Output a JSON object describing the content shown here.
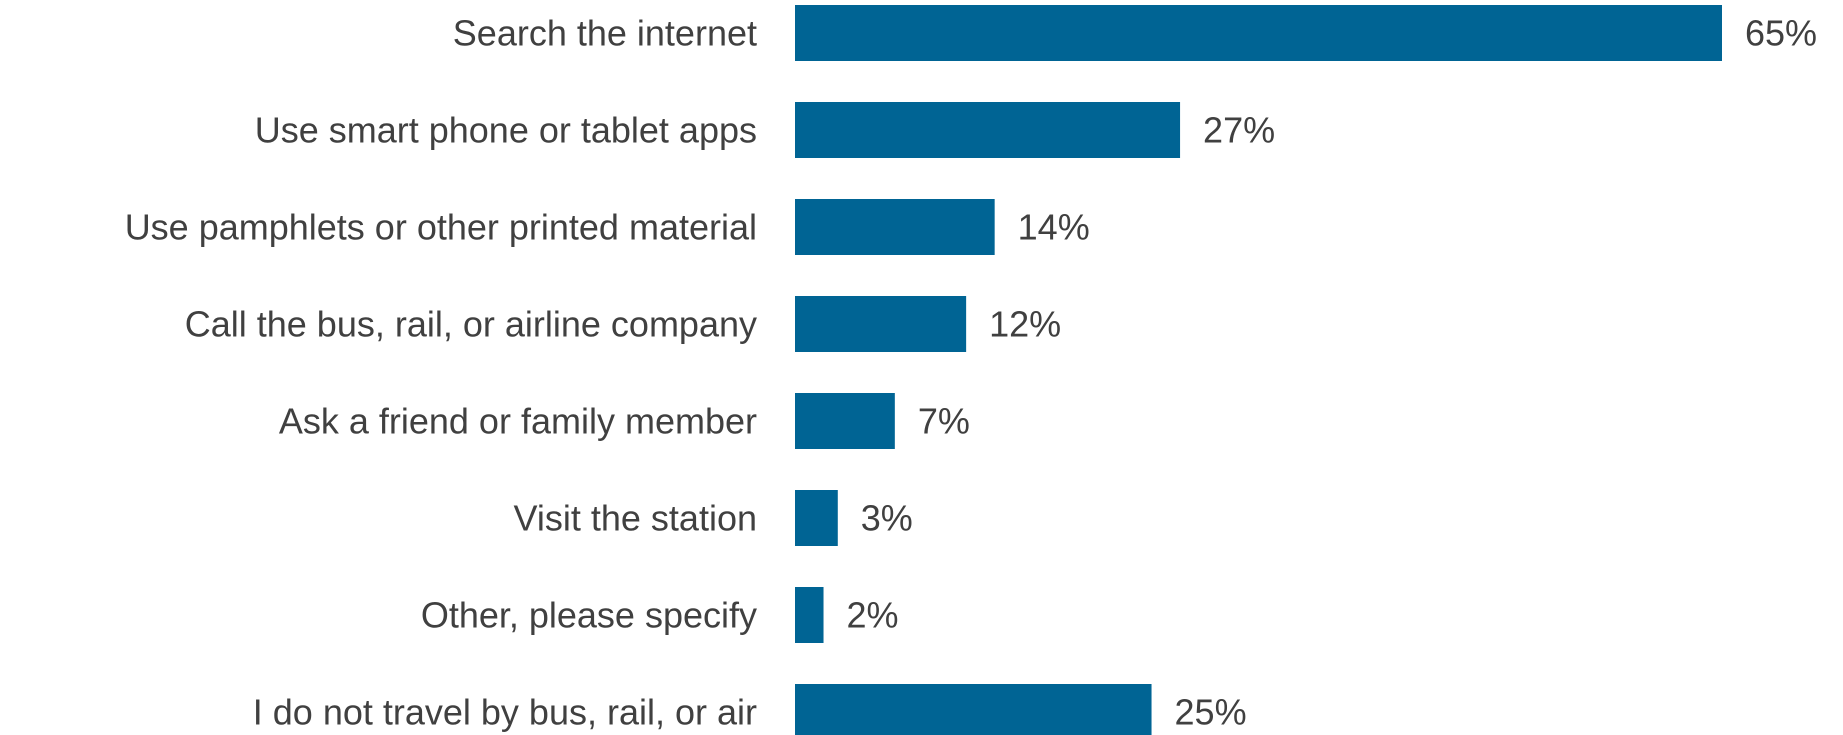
{
  "chart_data": {
    "type": "bar",
    "orientation": "horizontal",
    "categories": [
      "Search the internet",
      "Use smart phone or tablet apps",
      "Use pamphlets or other printed material",
      "Call the bus, rail, or airline company",
      "Ask a friend or family member",
      "Visit the station",
      "Other, please specify",
      "I do not travel by bus, rail, or air"
    ],
    "values": [
      65,
      27,
      14,
      12,
      7,
      3,
      2,
      25
    ],
    "value_labels": [
      "65%",
      "27%",
      "14%",
      "12%",
      "7%",
      "3%",
      "2%",
      "25%"
    ],
    "unit": "%",
    "xlim": [
      0,
      65
    ],
    "grid": false,
    "legend": "none",
    "colors": {
      "bar": "#006494",
      "text": "#404040"
    }
  }
}
